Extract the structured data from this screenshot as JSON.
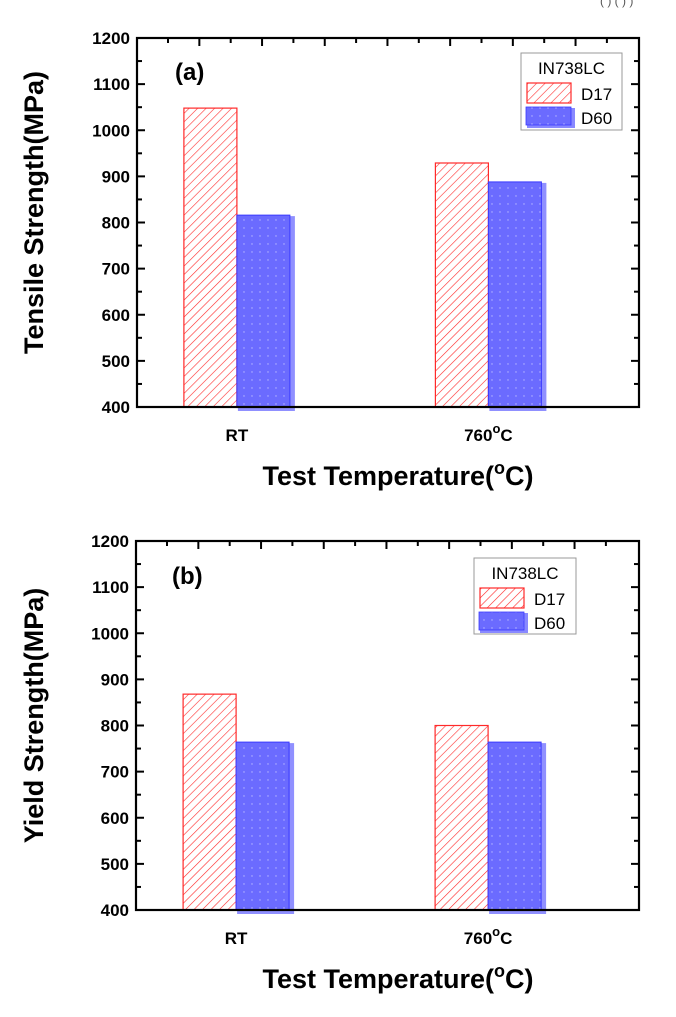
{
  "figure": {
    "corner_fragment": "(  )   (  ) )"
  },
  "colors": {
    "d17_stroke": "#ff2a2a",
    "d60_fill": "#6b6bff",
    "d60_edge": "#3a3aff",
    "axis": "#000000",
    "legend_border": "#999999"
  },
  "chart_data": [
    {
      "type": "bar",
      "panel_label": "(a)",
      "title": "",
      "xlabel": "Test Temperature(°C)",
      "ylabel": "Tensile Strength(MPa)",
      "categories": [
        "RT",
        "760°C"
      ],
      "category_labels": [
        {
          "main": "RT",
          "sup": ""
        },
        {
          "main": "760",
          "sup": "o",
          "suffix": "C"
        }
      ],
      "ylim": [
        400,
        1200
      ],
      "yticks": [
        400,
        500,
        600,
        700,
        800,
        900,
        1000,
        1100,
        1200
      ],
      "grid": false,
      "legend": {
        "title": "IN738LC",
        "placement": "top-right",
        "entries": [
          "D17",
          "D60"
        ]
      },
      "series": [
        {
          "name": "D17",
          "pattern": "hatched",
          "values": [
            1048,
            929
          ]
        },
        {
          "name": "D60",
          "pattern": "solid-dotted",
          "values": [
            816,
            888
          ]
        }
      ]
    },
    {
      "type": "bar",
      "panel_label": "(b)",
      "title": "",
      "xlabel": "Test Temperature(°C)",
      "ylabel": "Yield Strength(MPa)",
      "categories": [
        "RT",
        "760°C"
      ],
      "category_labels": [
        {
          "main": "RT",
          "sup": ""
        },
        {
          "main": "760",
          "sup": "o",
          "suffix": "C"
        }
      ],
      "ylim": [
        400,
        1200
      ],
      "yticks": [
        400,
        500,
        600,
        700,
        800,
        900,
        1000,
        1100,
        1200
      ],
      "grid": false,
      "legend": {
        "title": "IN738LC",
        "placement": "top-right",
        "entries": [
          "D17",
          "D60"
        ]
      },
      "series": [
        {
          "name": "D17",
          "pattern": "hatched",
          "values": [
            868,
            800
          ]
        },
        {
          "name": "D60",
          "pattern": "solid-dotted",
          "values": [
            764,
            764
          ]
        }
      ]
    }
  ]
}
